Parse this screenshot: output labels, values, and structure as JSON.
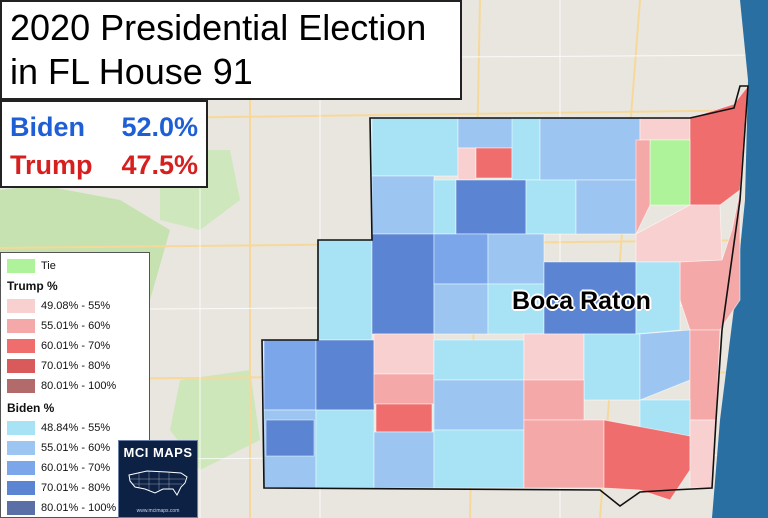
{
  "title": {
    "line1": "2020 Presidential Election",
    "line2": "in FL House 91"
  },
  "results": [
    {
      "candidate": "Biden",
      "percent": "52.0%",
      "color": "#1f5fd6"
    },
    {
      "candidate": "Trump",
      "percent": "47.5%",
      "color": "#d62020"
    }
  ],
  "legend": {
    "tie": {
      "label": "Tie",
      "color": "#aef29a"
    },
    "trump_header": "Trump  %",
    "trump": [
      {
        "label": "49.08% - 55%",
        "color": "#f9d0d0"
      },
      {
        "label": "55.01% - 60%",
        "color": "#f5a8a8"
      },
      {
        "label": "60.01% - 70%",
        "color": "#ef6d6d"
      },
      {
        "label": "70.01% - 80%",
        "color": "#d95a5a"
      },
      {
        "label": "80.01% - 100%",
        "color": "#b36a6a"
      }
    ],
    "biden_header": "Biden  %",
    "biden": [
      {
        "label": "48.84% - 55%",
        "color": "#a8e2f5"
      },
      {
        "label": "55.01% - 60%",
        "color": "#9cc6f1"
      },
      {
        "label": "60.01% - 70%",
        "color": "#7ba6ea"
      },
      {
        "label": "70.01% - 80%",
        "color": "#5b84d2"
      },
      {
        "label": "80.01% - 100%",
        "color": "#5a6fa6"
      }
    ]
  },
  "map": {
    "city_label": "Boca Raton",
    "ocean_color": "#2a6fa2",
    "district_outline_color": "#111111"
  },
  "logo": {
    "text": "MCI MAPS",
    "url": "www.mcimaps.com"
  }
}
